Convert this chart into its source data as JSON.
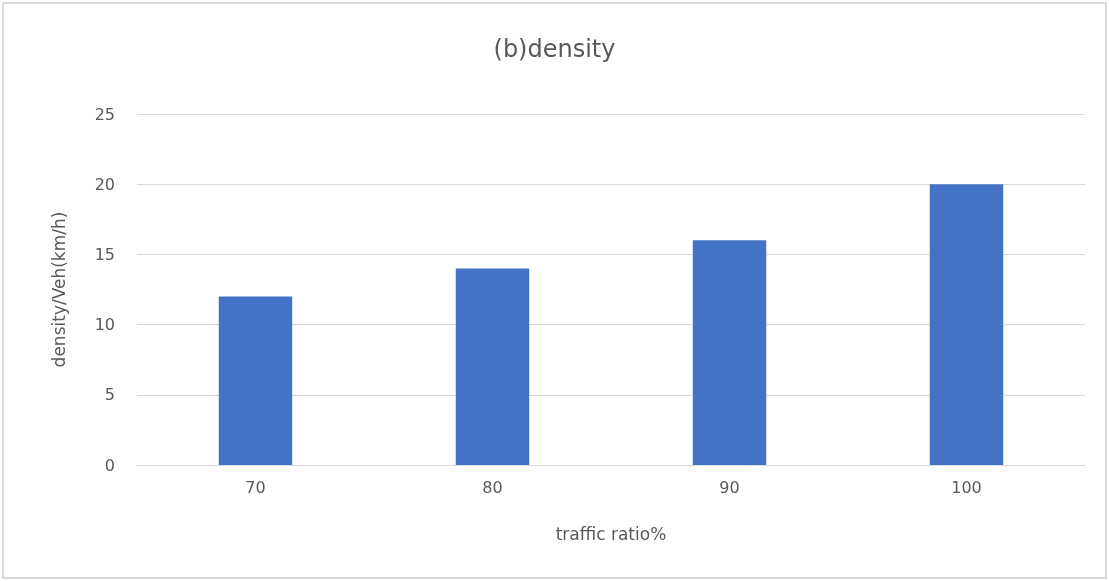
{
  "chart_data": {
    "type": "bar",
    "title": "(b)density",
    "xlabel": "traffic ratio%",
    "ylabel": "density/Veh(km/h)",
    "categories": [
      "70",
      "80",
      "90",
      "100"
    ],
    "values": [
      12,
      14,
      16,
      20
    ],
    "color": "#4472c4",
    "ylim": [
      0,
      25
    ],
    "yticks": [
      0,
      5,
      10,
      15,
      20,
      25
    ],
    "grid": "y"
  }
}
